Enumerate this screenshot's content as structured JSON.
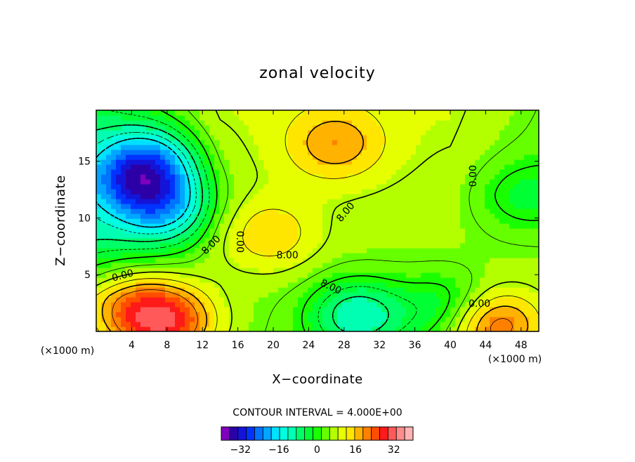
{
  "chart_data": {
    "type": "heatmap",
    "title": "zonal velocity",
    "xlabel": "X−coordinate",
    "ylabel": "Z−coordinate",
    "x_unit": "(×1000 m)",
    "y_unit": "(×1000 m)",
    "xlim": [
      0,
      50
    ],
    "ylim": [
      0,
      19.5
    ],
    "x_ticks": [
      4,
      8,
      12,
      16,
      20,
      24,
      28,
      32,
      36,
      40,
      44,
      48
    ],
    "y_ticks": [
      5,
      10,
      15
    ],
    "contour_interval_text": "CONTOUR INTERVAL = 4.000E+00",
    "contour_labels": [
      {
        "text": "0.00",
        "x": 3.0,
        "y": 4.9,
        "angle": -15
      },
      {
        "text": "8.00",
        "x": 13.0,
        "y": 7.6,
        "angle": -45
      },
      {
        "text": "0.00",
        "x": 16.2,
        "y": 7.9,
        "angle": 90
      },
      {
        "text": "8.00",
        "x": 21.6,
        "y": 6.7,
        "angle": 0
      },
      {
        "text": "8.00",
        "x": 28.2,
        "y": 10.5,
        "angle": -50
      },
      {
        "text": "8.00",
        "x": 26.5,
        "y": 3.9,
        "angle": 25
      },
      {
        "text": "0.00",
        "x": 42.6,
        "y": 13.7,
        "angle": -90
      },
      {
        "text": "0.00",
        "x": 43.3,
        "y": 2.4,
        "angle": 0
      }
    ],
    "features": [
      {
        "x": 6,
        "y": 15,
        "value": -16,
        "label": "low"
      },
      {
        "x": 8,
        "y": 11,
        "value": -14,
        "label": "low"
      },
      {
        "x": 4,
        "y": 13,
        "value": -10,
        "label": "low"
      },
      {
        "x": 8,
        "y": 0.8,
        "value": 25,
        "label": "high"
      },
      {
        "x": 45,
        "y": 0.5,
        "value": 24,
        "label": "high"
      },
      {
        "x": 4,
        "y": 2,
        "value": 16,
        "label": "high"
      },
      {
        "x": 27,
        "y": 16.5,
        "value": 15,
        "label": "high"
      },
      {
        "x": 19.5,
        "y": 8.5,
        "value": 13,
        "label": "high"
      },
      {
        "x": 29.5,
        "y": 1.5,
        "value": -12,
        "label": "low"
      },
      {
        "x": 40,
        "y": 2,
        "value": -6,
        "label": "low"
      },
      {
        "x": 48,
        "y": 12,
        "value": -2,
        "label": "low"
      }
    ],
    "colorbar": {
      "tick_labels": [
        "−32",
        "−16",
        "0",
        "16",
        "32"
      ],
      "tick_values": [
        -32,
        -16,
        0,
        16,
        32
      ],
      "range": [
        -40,
        40
      ],
      "colors": [
        "#7f00bf",
        "#2b00a6",
        "#1414d9",
        "#0033ff",
        "#0073ff",
        "#00a6ff",
        "#00e0ff",
        "#00ffe0",
        "#00ffb3",
        "#00ff66",
        "#00ff33",
        "#1aff00",
        "#66ff00",
        "#b3ff00",
        "#e6ff00",
        "#ffe600",
        "#ffb300",
        "#ff8000",
        "#ff4d00",
        "#ff1a1a",
        "#ff5959",
        "#ff8c8c",
        "#ffb3b3"
      ]
    }
  }
}
